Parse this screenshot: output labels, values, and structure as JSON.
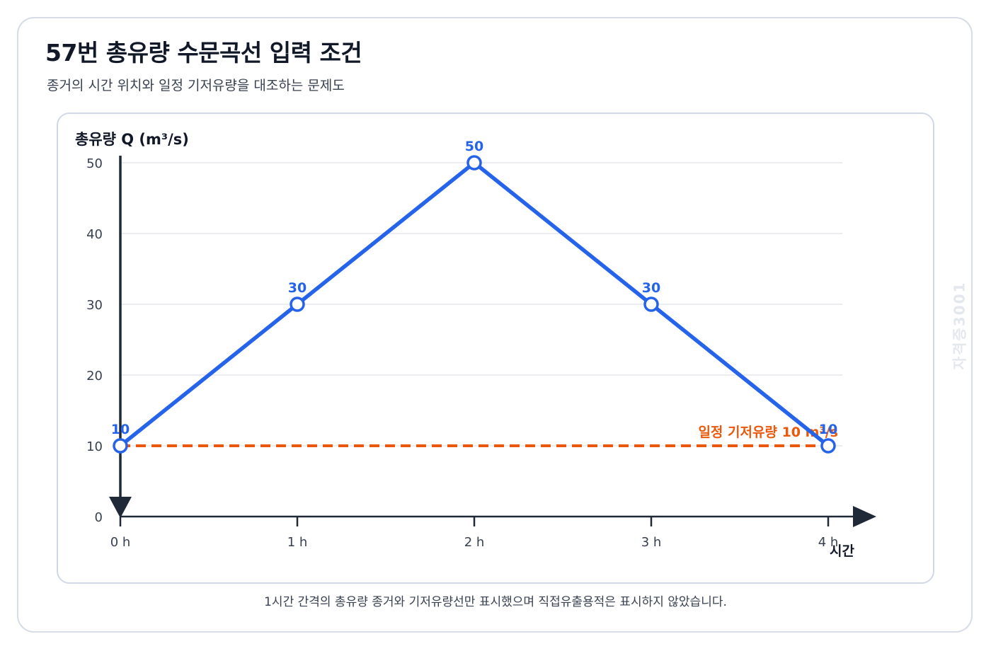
{
  "page": {
    "title": "57번 총유량 수문곡선 입력 조건",
    "subtitle": "종거의 시간 위치와 일정 기저유량을 대조하는 문제도",
    "footnote": "1시간 간격의 총유량 종거와 기저유량선만 표시했으며 직접유출용적은 표시하지 않았습니다.",
    "watermark": "자격증3001"
  },
  "colors": {
    "series": "#2563eb",
    "baseflow": "#ea580c",
    "axis": "#1f2937",
    "grid": "#e5e7eb",
    "tick_text": "#374151"
  },
  "chart_data": {
    "type": "line",
    "ylabel": "총유량 Q (m³/s)",
    "xlabel": "시간",
    "x": [
      "0 h",
      "1 h",
      "2 h",
      "3 h",
      "4 h"
    ],
    "ylim": [
      0,
      50
    ],
    "yticks": [
      0,
      10,
      20,
      30,
      40,
      50
    ],
    "grid": true,
    "series": [
      {
        "values": [
          10,
          30,
          50,
          30,
          10
        ],
        "data_labels": [
          "10",
          "30",
          "50",
          "30",
          "10"
        ]
      }
    ],
    "baseflow": {
      "value": 10,
      "label": "일정 기저유량 10 m³/s"
    }
  }
}
